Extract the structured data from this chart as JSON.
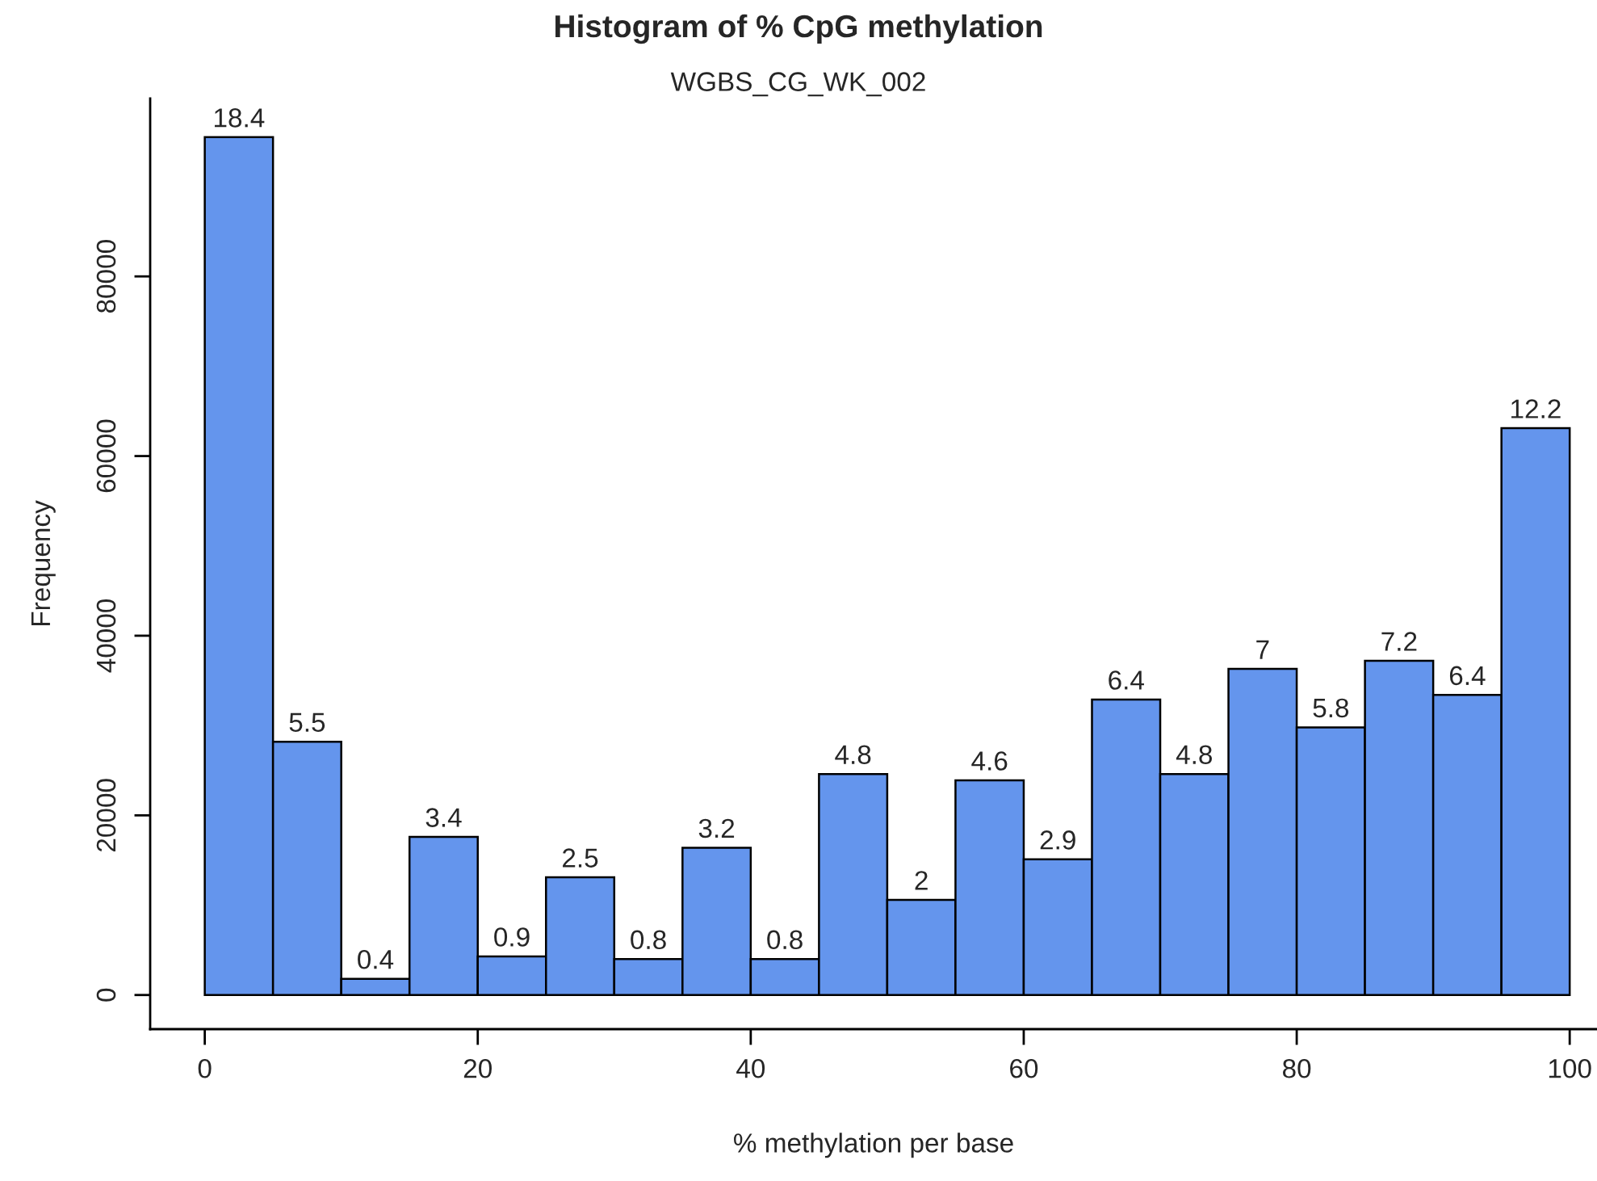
{
  "chart_data": {
    "type": "histogram",
    "title": "Histogram of % CpG methylation",
    "subtitle": "WGBS_CG_WK_002",
    "xlabel": "% methylation per base",
    "ylabel": "Frequency",
    "bins": [
      0,
      5,
      10,
      15,
      20,
      25,
      30,
      35,
      40,
      45,
      50,
      55,
      60,
      65,
      70,
      75,
      80,
      85,
      90,
      95,
      100
    ],
    "values": [
      95500,
      28200,
      1800,
      17600,
      4300,
      13100,
      4000,
      16400,
      4000,
      24600,
      10600,
      23900,
      15100,
      32900,
      24600,
      36300,
      29800,
      37200,
      33400,
      63100
    ],
    "annotations": [
      {
        "text": "18.4",
        "x": 2.5,
        "y": 95500
      },
      {
        "text": "5.5",
        "x": 7.5,
        "y": 28200
      },
      {
        "text": "0.4",
        "x": 12.5,
        "y": 1800
      },
      {
        "text": "3.4",
        "x": 17.5,
        "y": 17600
      },
      {
        "text": "0.9",
        "x": 22.5,
        "y": 4300
      },
      {
        "text": "2.5",
        "x": 27.5,
        "y": 13100
      },
      {
        "text": "0.8",
        "x": 32.5,
        "y": 4000
      },
      {
        "text": "3.2",
        "x": 37.5,
        "y": 16400
      },
      {
        "text": "0.8",
        "x": 42.5,
        "y": 4000
      },
      {
        "text": "4.8",
        "x": 47.5,
        "y": 24600
      },
      {
        "text": "2",
        "x": 52.5,
        "y": 10600
      },
      {
        "text": "4.6",
        "x": 57.5,
        "y": 23900
      },
      {
        "text": "2.9",
        "x": 62.5,
        "y": 15100
      },
      {
        "text": "6.4",
        "x": 67.5,
        "y": 32900
      },
      {
        "text": "4.8",
        "x": 72.5,
        "y": 24600
      },
      {
        "text": "7",
        "x": 77.5,
        "y": 36300
      },
      {
        "text": "5.8",
        "x": 82.5,
        "y": 29800
      },
      {
        "text": "7.2",
        "x": 87.5,
        "y": 37200
      },
      {
        "text": "6.4",
        "x": 92.5,
        "y": 33400
      },
      {
        "text": "12.2",
        "x": 97.5,
        "y": 63100
      }
    ],
    "color": "#6495ed",
    "xlim": [
      -4,
      102
    ],
    "ylim": [
      -3800,
      99800
    ],
    "xticks": [
      0,
      20,
      40,
      60,
      80,
      100
    ],
    "yticks": [
      0,
      20000,
      40000,
      60000,
      80000
    ],
    "grid": false
  }
}
